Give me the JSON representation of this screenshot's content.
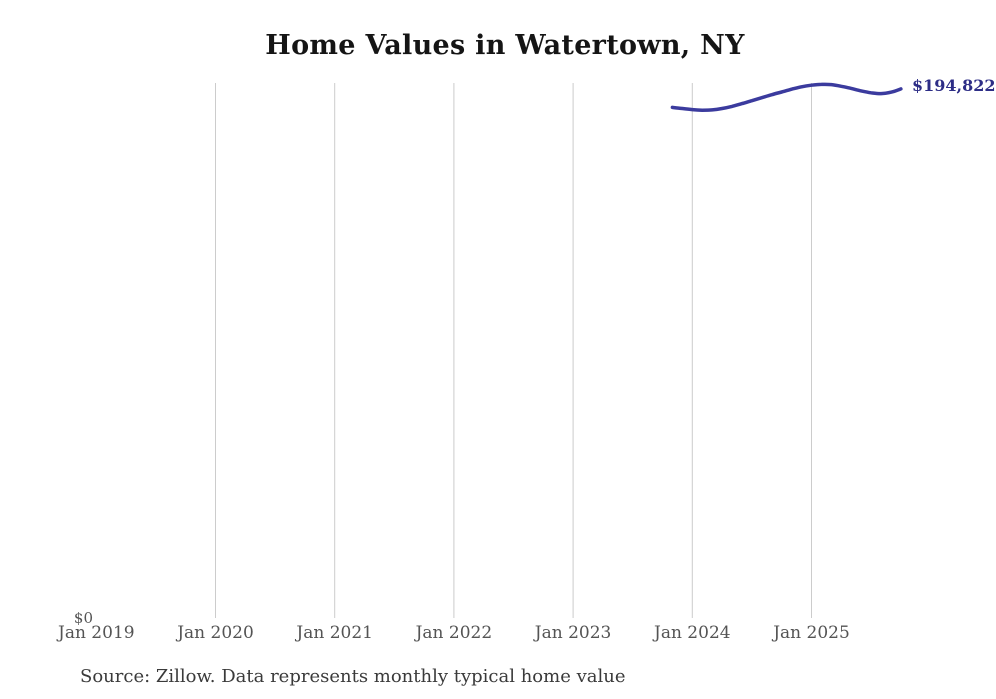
{
  "source_note": "Source: Zillow. Data represents monthly typical home value",
  "chart_data": {
    "type": "line",
    "title": "Home Values in Watertown, NY",
    "xlabel": "",
    "ylabel": "",
    "ylim": [
      0,
      197000
    ],
    "y_zero_label": "$0",
    "end_label": "$194,822",
    "grid": "vertical-only",
    "legend": "none",
    "line_color": "#3b3b9e",
    "end_label_color": "#2d2d86",
    "grid_color": "#cccccc",
    "x_ticks": [
      {
        "label": "Jan 2019",
        "gridline": false
      },
      {
        "label": "Jan 2020",
        "gridline": true
      },
      {
        "label": "Jan 2021",
        "gridline": true
      },
      {
        "label": "Jan 2022",
        "gridline": true
      },
      {
        "label": "Jan 2023",
        "gridline": true
      },
      {
        "label": "Jan 2024",
        "gridline": true
      },
      {
        "label": "Jan 2025",
        "gridline": true
      }
    ],
    "series": [
      {
        "name": "Monthly typical home value",
        "points": [
          {
            "month": "2023-11",
            "value": 188000
          },
          {
            "month": "2023-12",
            "value": 187600
          },
          {
            "month": "2024-01",
            "value": 187200
          },
          {
            "month": "2024-02",
            "value": 187000
          },
          {
            "month": "2024-03",
            "value": 187100
          },
          {
            "month": "2024-04",
            "value": 187600
          },
          {
            "month": "2024-05",
            "value": 188400
          },
          {
            "month": "2024-06",
            "value": 189400
          },
          {
            "month": "2024-07",
            "value": 190500
          },
          {
            "month": "2024-08",
            "value": 191600
          },
          {
            "month": "2024-09",
            "value": 192700
          },
          {
            "month": "2024-10",
            "value": 193700
          },
          {
            "month": "2024-11",
            "value": 194700
          },
          {
            "month": "2024-12",
            "value": 195600
          },
          {
            "month": "2025-01",
            "value": 196200
          },
          {
            "month": "2025-02",
            "value": 196500
          },
          {
            "month": "2025-03",
            "value": 196400
          },
          {
            "month": "2025-04",
            "value": 195800
          },
          {
            "month": "2025-05",
            "value": 195000
          },
          {
            "month": "2025-06",
            "value": 194100
          },
          {
            "month": "2025-07",
            "value": 193400
          },
          {
            "month": "2025-08",
            "value": 193100
          },
          {
            "month": "2025-09",
            "value": 193600
          },
          {
            "month": "2025-10",
            "value": 194822
          }
        ]
      }
    ]
  }
}
